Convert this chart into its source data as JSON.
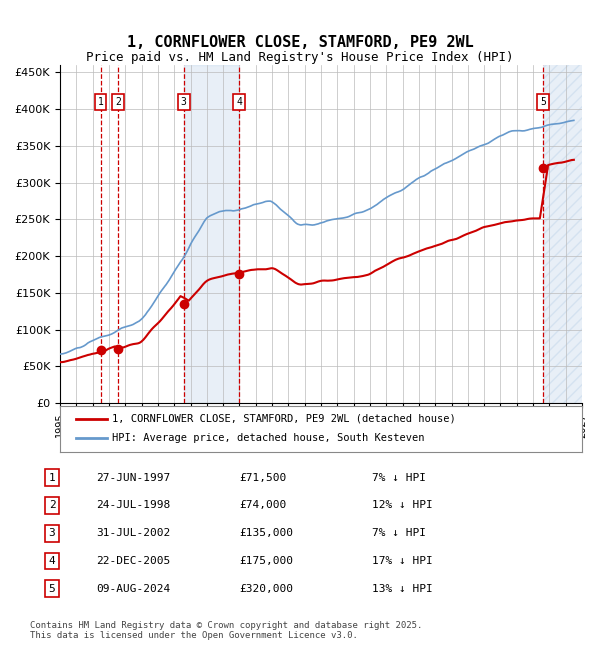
{
  "title": "1, CORNFLOWER CLOSE, STAMFORD, PE9 2WL",
  "subtitle": "Price paid vs. HM Land Registry's House Price Index (HPI)",
  "title_fontsize": 11,
  "subtitle_fontsize": 9,
  "xlabel": "",
  "ylabel": "",
  "ylim": [
    0,
    460000
  ],
  "yticks": [
    0,
    50000,
    100000,
    150000,
    200000,
    250000,
    300000,
    350000,
    400000,
    450000
  ],
  "ytick_labels": [
    "£0",
    "£50K",
    "£100K",
    "£150K",
    "£200K",
    "£250K",
    "£300K",
    "£350K",
    "£400K",
    "£450K"
  ],
  "sale_dates_num": [
    1997.49,
    1998.56,
    2002.58,
    2005.98,
    2024.61
  ],
  "sale_prices": [
    71500,
    74000,
    135000,
    175000,
    320000
  ],
  "sale_labels": [
    "1",
    "2",
    "3",
    "4",
    "5"
  ],
  "sale_color": "#cc0000",
  "hpi_color": "#6699cc",
  "hpi_fill_color": "#ddeeff",
  "vline_color": "#cc0000",
  "vline_style": "--",
  "shade_start": 2002.58,
  "shade_end": 2005.98,
  "legend_line1": "1, CORNFLOWER CLOSE, STAMFORD, PE9 2WL (detached house)",
  "legend_line2": "HPI: Average price, detached house, South Kesteven",
  "table_data": [
    [
      "1",
      "27-JUN-1997",
      "£71,500",
      "7% ↓ HPI"
    ],
    [
      "2",
      "24-JUL-1998",
      "£74,000",
      "12% ↓ HPI"
    ],
    [
      "3",
      "31-JUL-2002",
      "£135,000",
      "7% ↓ HPI"
    ],
    [
      "4",
      "22-DEC-2005",
      "£175,000",
      "17% ↓ HPI"
    ],
    [
      "5",
      "09-AUG-2024",
      "£320,000",
      "13% ↓ HPI"
    ]
  ],
  "footer": "Contains HM Land Registry data © Crown copyright and database right 2025.\nThis data is licensed under the Open Government Licence v3.0.",
  "bg_color": "#ffffff",
  "grid_color": "#bbbbbb",
  "hatch_color": "#aabbcc",
  "xmin": 1995,
  "xmax": 2027
}
